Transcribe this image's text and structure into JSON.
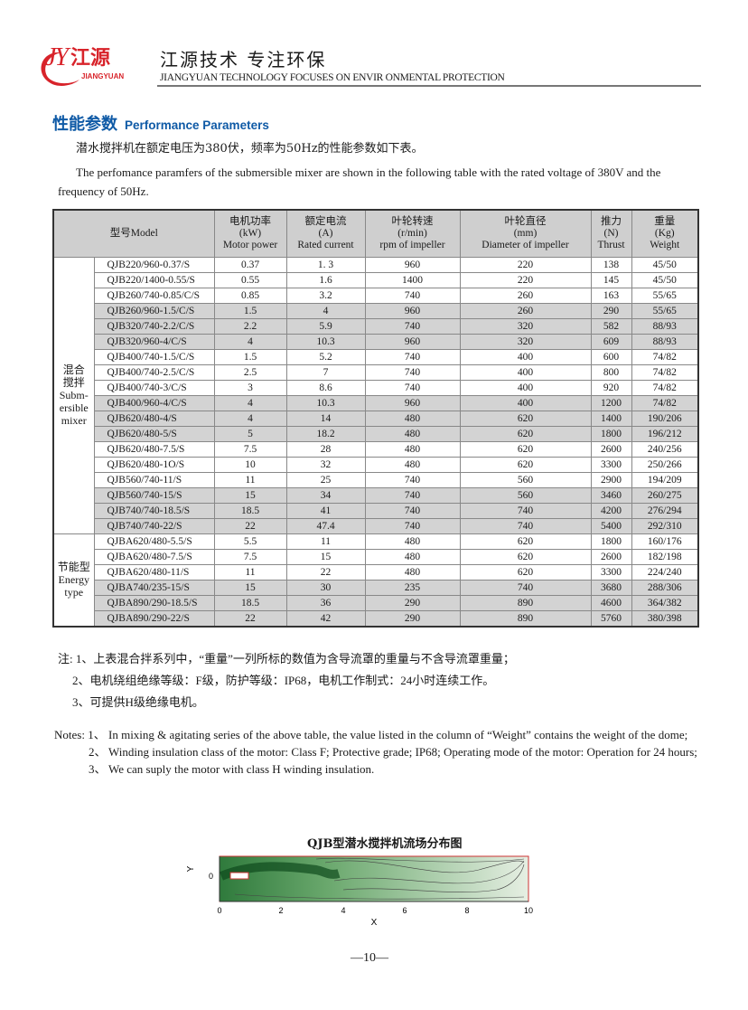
{
  "header": {
    "logo_text": "JY江源",
    "logo_sub": "JIANGYUAN",
    "slogan_cn": "江源技术 专注环保",
    "slogan_en": "JIANGYUAN TECHNOLOGY FOCUSES ON ENVIR ONMENTAL PROTECTION",
    "brand_color": "#d8232a"
  },
  "section": {
    "title_cn": "性能参数",
    "title_en": "Performance Parameters",
    "title_color": "#0f5aa6"
  },
  "intro": {
    "cn": "潜水搅拌机在额定电压为380伏，频率为50Hz的性能参数如下表。",
    "en": "The perfomance paramfers of  the submersible mixer are shown in the following table with the rated voltage of  380V and the frequency of 50Hz."
  },
  "table": {
    "headers": [
      [
        "型号Model"
      ],
      [
        "电机功率",
        "(kW)",
        "Motor power"
      ],
      [
        "额定电流",
        "(A)",
        "Rated current"
      ],
      [
        "叶轮转速",
        "(r/min)",
        "rpm of impeller"
      ],
      [
        "叶轮直径",
        "(mm)",
        "Diameter of impeller"
      ],
      [
        "推力",
        "(N)",
        "Thrust"
      ],
      [
        "重量",
        "(Kg)",
        "Weight"
      ]
    ],
    "groups": [
      {
        "label": [
          "混合",
          "搅拌",
          "Subm-",
          "ersible",
          "mixer"
        ],
        "rows": [
          [
            "QJB220/960-0.37/S",
            "0.37",
            "1. 3",
            "960",
            "220",
            "138",
            "45/50"
          ],
          [
            "QJB220/1400-0.55/S",
            "0.55",
            "1.6",
            "1400",
            "220",
            "145",
            "45/50"
          ],
          [
            "QJB260/740-0.85/C/S",
            "0.85",
            "3.2",
            "740",
            "260",
            "163",
            "55/65"
          ],
          [
            "QJB260/960-1.5/C/S",
            "1.5",
            "4",
            "960",
            "260",
            "290",
            "55/65"
          ],
          [
            "QJB320/740-2.2/C/S",
            "2.2",
            "5.9",
            "740",
            "320",
            "582",
            "88/93"
          ],
          [
            "QJB320/960-4/C/S",
            "4",
            "10.3",
            "960",
            "320",
            "609",
            "88/93"
          ],
          [
            "QJB400/740-1.5/C/S",
            "1.5",
            "5.2",
            "740",
            "400",
            "600",
            "74/82"
          ],
          [
            "QJB400/740-2.5/C/S",
            "2.5",
            "7",
            "740",
            "400",
            "800",
            "74/82"
          ],
          [
            "QJB400/740-3/C/S",
            "3",
            "8.6",
            "740",
            "400",
            "920",
            "74/82"
          ],
          [
            "QJB400/960-4/C/S",
            "4",
            "10.3",
            "960",
            "400",
            "1200",
            "74/82"
          ],
          [
            "QJB620/480-4/S",
            "4",
            "14",
            "480",
            "620",
            "1400",
            "190/206"
          ],
          [
            "QJB620/480-5/S",
            "5",
            "18.2",
            "480",
            "620",
            "1800",
            "196/212"
          ],
          [
            "QJB620/480-7.5/S",
            "7.5",
            "28",
            "480",
            "620",
            "2600",
            "240/256"
          ],
          [
            "QJB620/480-1O/S",
            "10",
            "32",
            "480",
            "620",
            "3300",
            "250/266"
          ],
          [
            "QJB560/740-11/S",
            "11",
            "25",
            "740",
            "560",
            "2900",
            "194/209"
          ],
          [
            "QJB560/740-15/S",
            "15",
            "34",
            "740",
            "560",
            "3460",
            "260/275"
          ],
          [
            "QJB740/740-18.5/S",
            "18.5",
            "41",
            "740",
            "740",
            "4200",
            "276/294"
          ],
          [
            "QJB740/740-22/S",
            "22",
            "47.4",
            "740",
            "740",
            "5400",
            "292/310"
          ]
        ]
      },
      {
        "label": [
          "节能型",
          "Energy",
          "type"
        ],
        "rows": [
          [
            "QJBA620/480-5.5/S",
            "5.5",
            "11",
            "480",
            "620",
            "1800",
            "160/176"
          ],
          [
            "QJBA620/480-7.5/S",
            "7.5",
            "15",
            "480",
            "620",
            "2600",
            "182/198"
          ],
          [
            "QJBA620/480-11/S",
            "11",
            "22",
            "480",
            "620",
            "3300",
            "224/240"
          ],
          [
            "QJBA740/235-15/S",
            "15",
            "30",
            "235",
            "740",
            "3680",
            "288/306"
          ],
          [
            "QJBA890/290-18.5/S",
            "18.5",
            "36",
            "290",
            "890",
            "4600",
            "364/382"
          ],
          [
            "QJBA890/290-22/S",
            "22",
            "42",
            "290",
            "890",
            "5760",
            "380/398"
          ]
        ]
      }
    ]
  },
  "notes_cn": [
    "注: 1、上表混合拌系列中，“重量”一列所标的数值为含导流罩的重量与不含导流罩重量；",
    "2、电机绕组绝缘等级：F级，防护等级：IP68，电机工作制式：24小时连续工作。",
    "3、可提供H级绝缘电机。"
  ],
  "notes_en": [
    {
      "num": "Notes: 1、",
      "text": "In mixing &  agitating series of the above table, the value listed in the column of “Weight”  contains the weight of the dome;"
    },
    {
      "num": "2、",
      "text": "Winding insulation class of the motor: Class F; Protective grade; IP68; Operating mode of the motor: Operation for 24 hours;"
    },
    {
      "num": "3、",
      "text": "We can suply the motor with class H winding insulation."
    }
  ],
  "figure": {
    "title": "QJB型潜水搅拌机流场分布图",
    "xlabel": "X",
    "ylabel": "Y",
    "xticks": [
      "0",
      "2",
      "4",
      "6",
      "8",
      "10"
    ],
    "yticks": [
      "0"
    ]
  },
  "page_number": "—10—"
}
